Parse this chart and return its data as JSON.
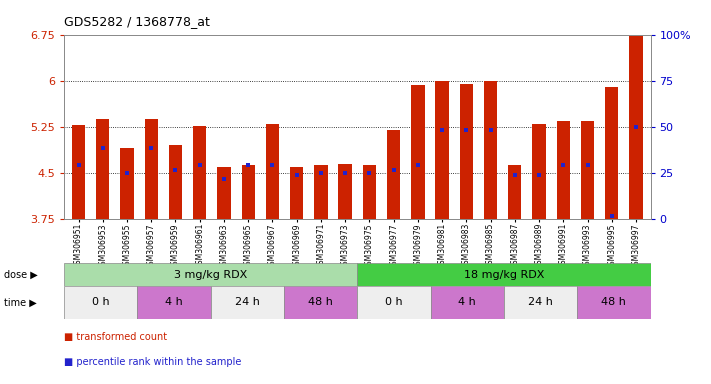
{
  "title": "GDS5282 / 1368778_at",
  "samples": [
    "GSM306951",
    "GSM306953",
    "GSM306955",
    "GSM306957",
    "GSM306959",
    "GSM306961",
    "GSM306963",
    "GSM306965",
    "GSM306967",
    "GSM306969",
    "GSM306971",
    "GSM306973",
    "GSM306975",
    "GSM306977",
    "GSM306979",
    "GSM306981",
    "GSM306983",
    "GSM306985",
    "GSM306987",
    "GSM306989",
    "GSM306991",
    "GSM306993",
    "GSM306995",
    "GSM306997"
  ],
  "bar_values": [
    5.28,
    5.38,
    4.9,
    5.37,
    4.95,
    5.26,
    4.6,
    4.62,
    5.3,
    4.6,
    4.63,
    4.65,
    4.62,
    5.19,
    5.93,
    6.0,
    5.95,
    6.0,
    4.62,
    5.3,
    5.35,
    5.35,
    5.9,
    6.72
  ],
  "percentile_values": [
    4.63,
    4.9,
    4.49,
    4.9,
    4.55,
    4.62,
    4.4,
    4.62,
    4.63,
    4.47,
    4.5,
    4.5,
    4.5,
    4.55,
    4.63,
    5.19,
    5.19,
    5.19,
    4.47,
    4.47,
    4.63,
    4.63,
    3.8,
    5.25
  ],
  "ymin": 3.75,
  "ymax": 6.75,
  "yticks": [
    3.75,
    4.5,
    5.25,
    6.0,
    6.75
  ],
  "ytick_labels": [
    "3.75",
    "4.5",
    "5.25",
    "6",
    "6.75"
  ],
  "grid_lines": [
    4.5,
    5.25,
    6.0
  ],
  "right_ytick_percents": [
    0,
    25,
    50,
    75,
    100
  ],
  "right_ytick_labels": [
    "0",
    "25",
    "50",
    "75",
    "100%"
  ],
  "bar_color": "#cc2200",
  "percentile_color": "#2222cc",
  "background_color": "#ffffff",
  "plot_bg_color": "#ffffff",
  "dose_groups": [
    {
      "label": "3 mg/kg RDX",
      "start": 0,
      "end": 12,
      "color": "#aaddaa"
    },
    {
      "label": "18 mg/kg RDX",
      "start": 12,
      "end": 24,
      "color": "#44cc44"
    }
  ],
  "time_groups": [
    {
      "label": "0 h",
      "start": 0,
      "end": 3,
      "color": "#eeeeee"
    },
    {
      "label": "4 h",
      "start": 3,
      "end": 6,
      "color": "#cc77cc"
    },
    {
      "label": "24 h",
      "start": 6,
      "end": 9,
      "color": "#eeeeee"
    },
    {
      "label": "48 h",
      "start": 9,
      "end": 12,
      "color": "#cc77cc"
    },
    {
      "label": "0 h",
      "start": 12,
      "end": 15,
      "color": "#eeeeee"
    },
    {
      "label": "4 h",
      "start": 15,
      "end": 18,
      "color": "#cc77cc"
    },
    {
      "label": "24 h",
      "start": 18,
      "end": 21,
      "color": "#eeeeee"
    },
    {
      "label": "48 h",
      "start": 21,
      "end": 24,
      "color": "#cc77cc"
    }
  ],
  "legend_items": [
    {
      "label": "transformed count",
      "color": "#cc2200"
    },
    {
      "label": "percentile rank within the sample",
      "color": "#2222cc"
    }
  ],
  "left_tick_color": "#cc2200",
  "right_tick_color": "#0000cc"
}
